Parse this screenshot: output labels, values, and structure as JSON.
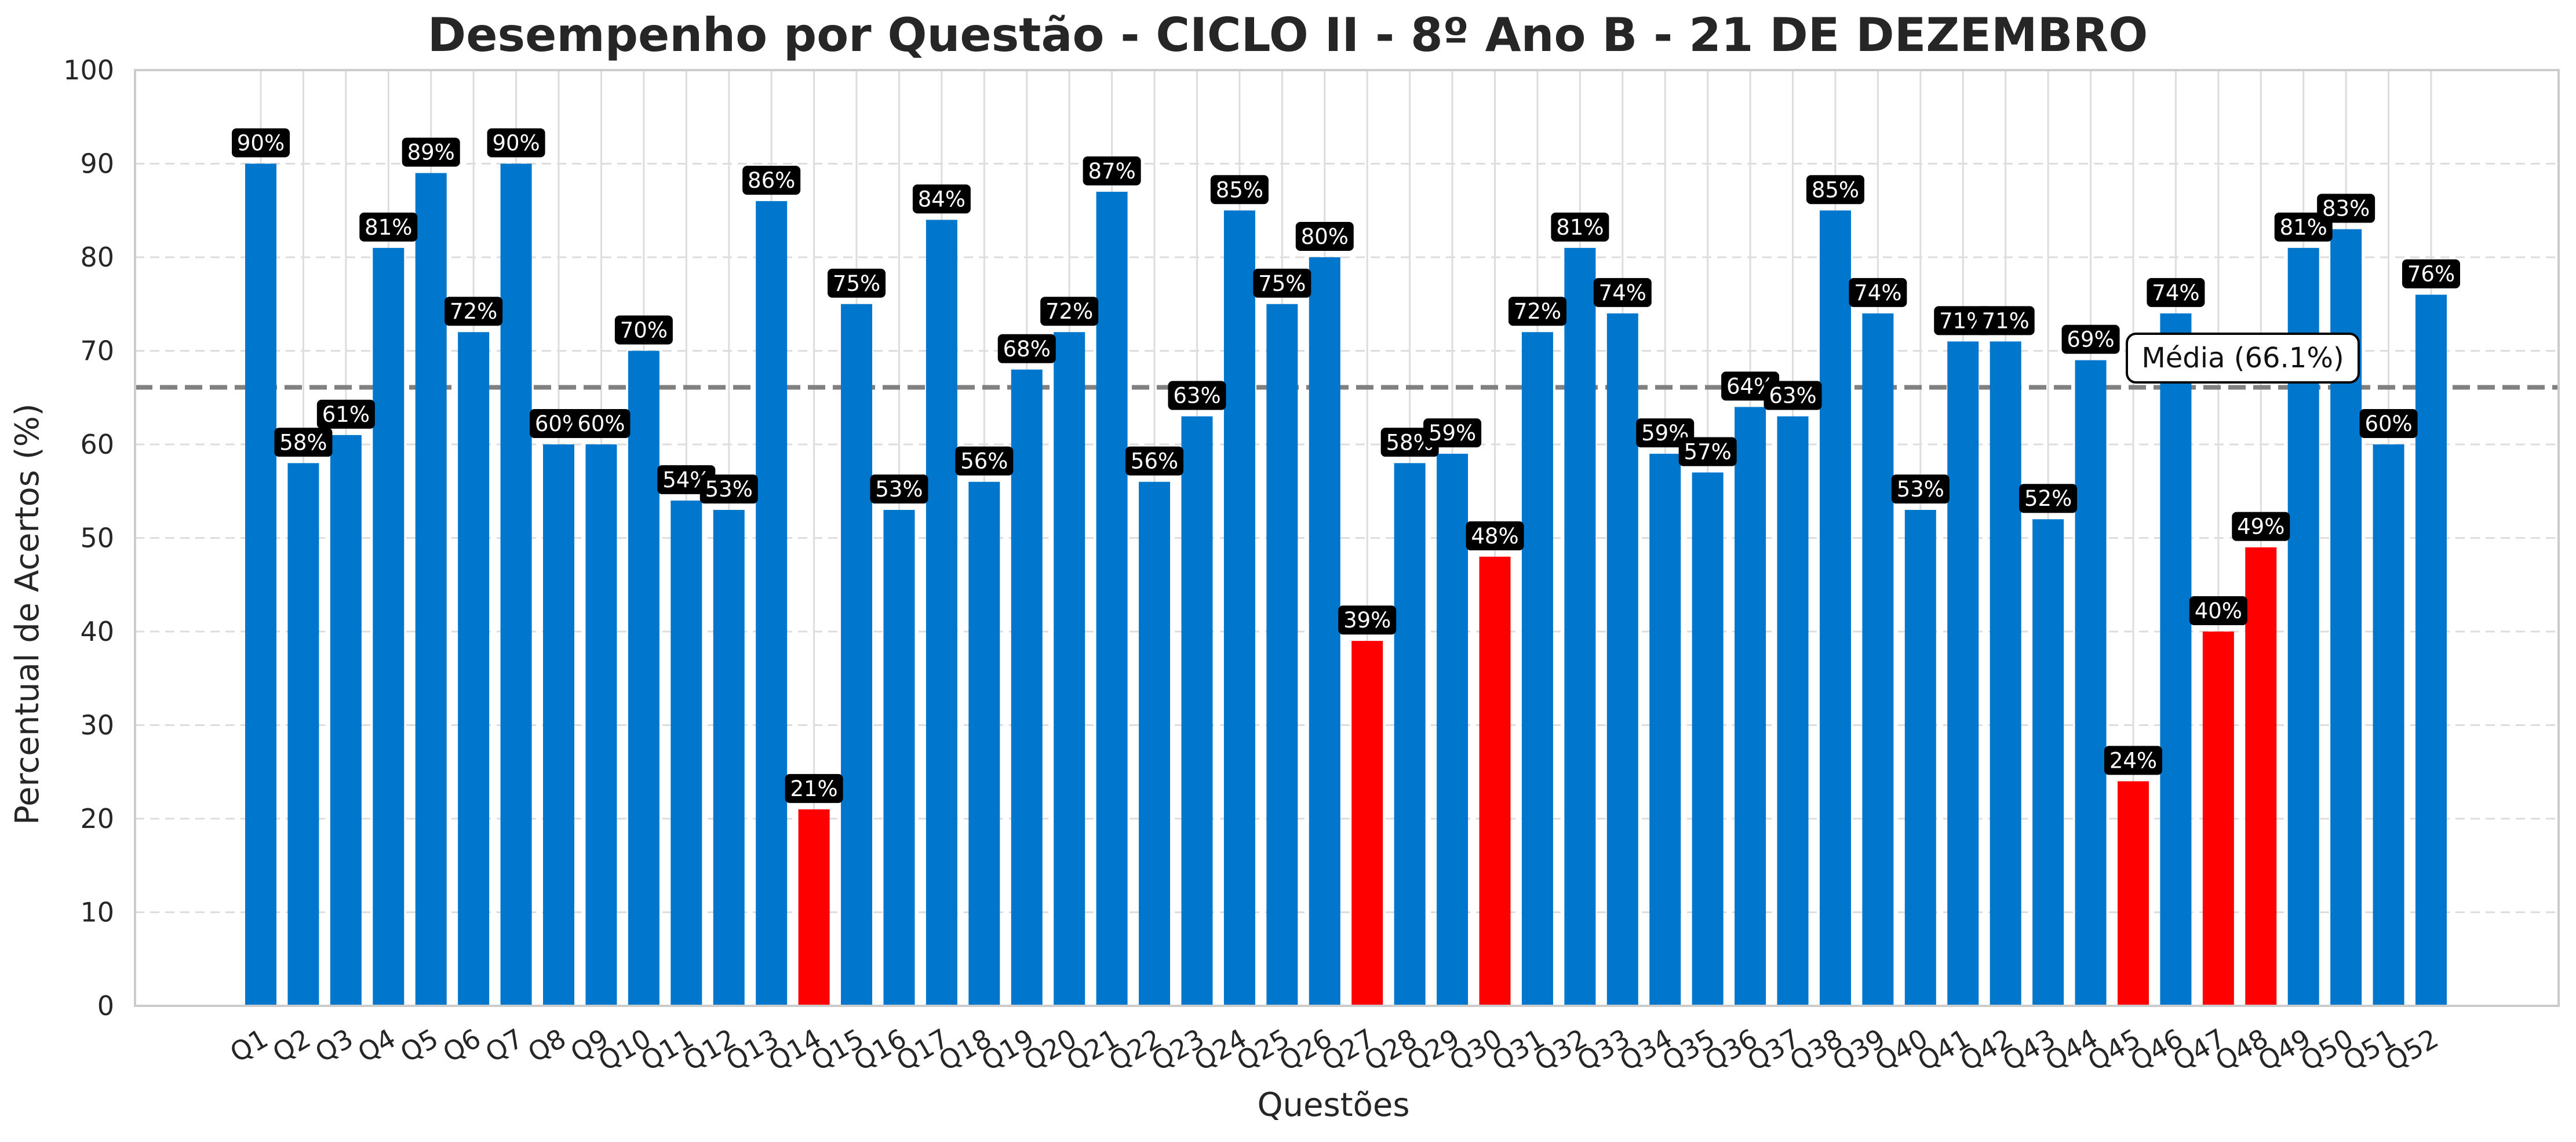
{
  "chart_data": {
    "type": "bar",
    "title": "Desempenho por Questão - CICLO II - 8º Ano B - 21 DE DEZEMBRO",
    "xlabel": "Questões",
    "ylabel": "Percentual de Acertos (%)",
    "ylim": [
      0,
      100
    ],
    "yticks": [
      "0",
      "10",
      "20",
      "30",
      "40",
      "50",
      "60",
      "70",
      "80",
      "90",
      "100"
    ],
    "grid": true,
    "categories": [
      "Q1",
      "Q2",
      "Q3",
      "Q4",
      "Q5",
      "Q6",
      "Q7",
      "Q8",
      "Q9",
      "Q10",
      "Q11",
      "Q12",
      "Q13",
      "Q14",
      "Q15",
      "Q16",
      "Q17",
      "Q18",
      "Q19",
      "Q20",
      "Q21",
      "Q22",
      "Q23",
      "Q24",
      "Q25",
      "Q26",
      "Q27",
      "Q28",
      "Q29",
      "Q30",
      "Q31",
      "Q32",
      "Q33",
      "Q34",
      "Q35",
      "Q36",
      "Q37",
      "Q38",
      "Q39",
      "Q40",
      "Q41",
      "Q42",
      "Q43",
      "Q44",
      "Q45",
      "Q46",
      "Q47",
      "Q48",
      "Q49",
      "Q50",
      "Q51",
      "Q52"
    ],
    "values": [
      90,
      58,
      61,
      81,
      89,
      72,
      90,
      60,
      60,
      70,
      54,
      53,
      86,
      21,
      75,
      53,
      84,
      56,
      68,
      72,
      87,
      56,
      63,
      85,
      75,
      80,
      39,
      58,
      59,
      48,
      72,
      81,
      74,
      59,
      57,
      64,
      63,
      85,
      74,
      53,
      71,
      71,
      52,
      69,
      24,
      74,
      40,
      49,
      81,
      83,
      60,
      76
    ],
    "bar_labels": [
      "90%",
      "58%",
      "61%",
      "81%",
      "89%",
      "72%",
      "90%",
      "60%",
      "60%",
      "70%",
      "54%",
      "53%",
      "86%",
      "21%",
      "75%",
      "53%",
      "84%",
      "56%",
      "68%",
      "72%",
      "87%",
      "56%",
      "63%",
      "85%",
      "75%",
      "80%",
      "39%",
      "58%",
      "59%",
      "48%",
      "72%",
      "81%",
      "74%",
      "59%",
      "57%",
      "64%",
      "63%",
      "85%",
      "74%",
      "53%",
      "71%",
      "71%",
      "52%",
      "69%",
      "24%",
      "74%",
      "40%",
      "49%",
      "81%",
      "83%",
      "60%",
      "76%"
    ],
    "mean": 66.1,
    "mean_label": "Média (66.1%)",
    "colors": {
      "bar_default": "#0077CC",
      "bar_highlight": "#FF0000",
      "highlight_threshold": 50,
      "mean_line": "#808080",
      "grid": "#DDDDDD",
      "label_bg": "#000000",
      "label_text": "#FFFFFF"
    }
  }
}
